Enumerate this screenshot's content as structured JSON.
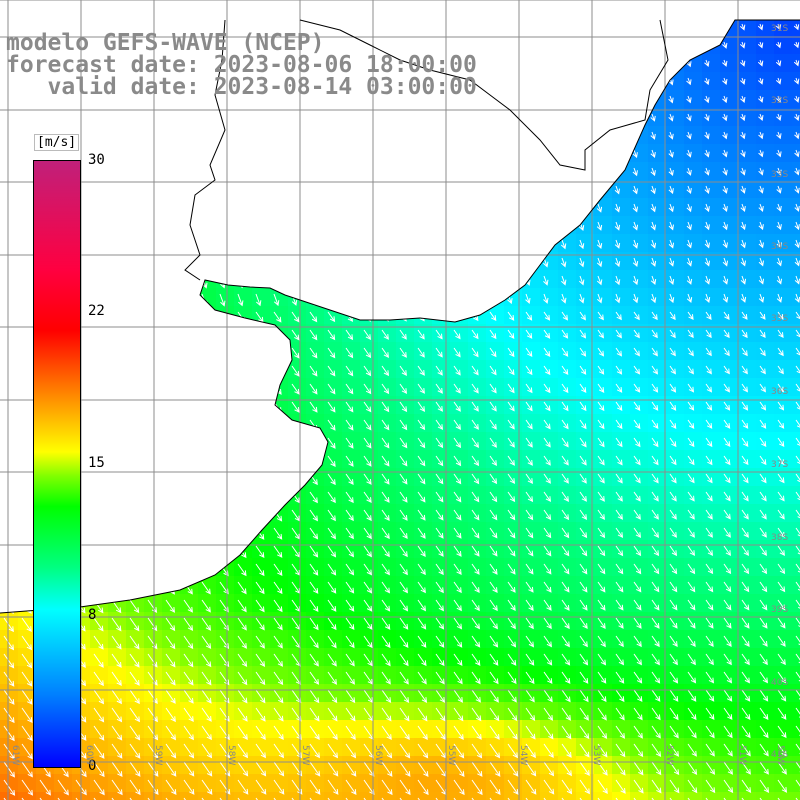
{
  "title": {
    "line1": "modelo GEFS-WAVE (NCEP)",
    "line2": "forecast date: 2023-08-06 18:00:00",
    "line3": "   valid date: 2023-08-14 03:00:00"
  },
  "colorbar": {
    "unit": "[m/s]",
    "ticks": [
      "30",
      "22",
      "15",
      "8",
      "0"
    ],
    "colors": [
      "#0000ff",
      "#0080ff",
      "#00ffff",
      "#00ff80",
      "#00ff00",
      "#80ff00",
      "#ffff00",
      "#ff8000",
      "#ff0000",
      "#c0207a"
    ]
  },
  "axes": {
    "lon_labels": [
      "61W",
      "60W",
      "59W",
      "58W",
      "57W",
      "56W",
      "55W",
      "54W",
      "53W",
      "52W",
      "51W",
      "50W"
    ],
    "lat_labels": [
      "31S",
      "32S",
      "33S",
      "34S",
      "35S",
      "36S",
      "37S",
      "38S",
      "39S",
      "40S",
      "41S"
    ]
  },
  "map_info": {
    "variable": "wind speed with direction arrows",
    "units": "m/s",
    "range": [
      0,
      30
    ],
    "grid": true
  },
  "colors": {
    "land": "#ffffff",
    "coast": "#000000",
    "grid": "#8c8c8c",
    "arrow": "#ffffff",
    "title": "#8a8a8a"
  }
}
